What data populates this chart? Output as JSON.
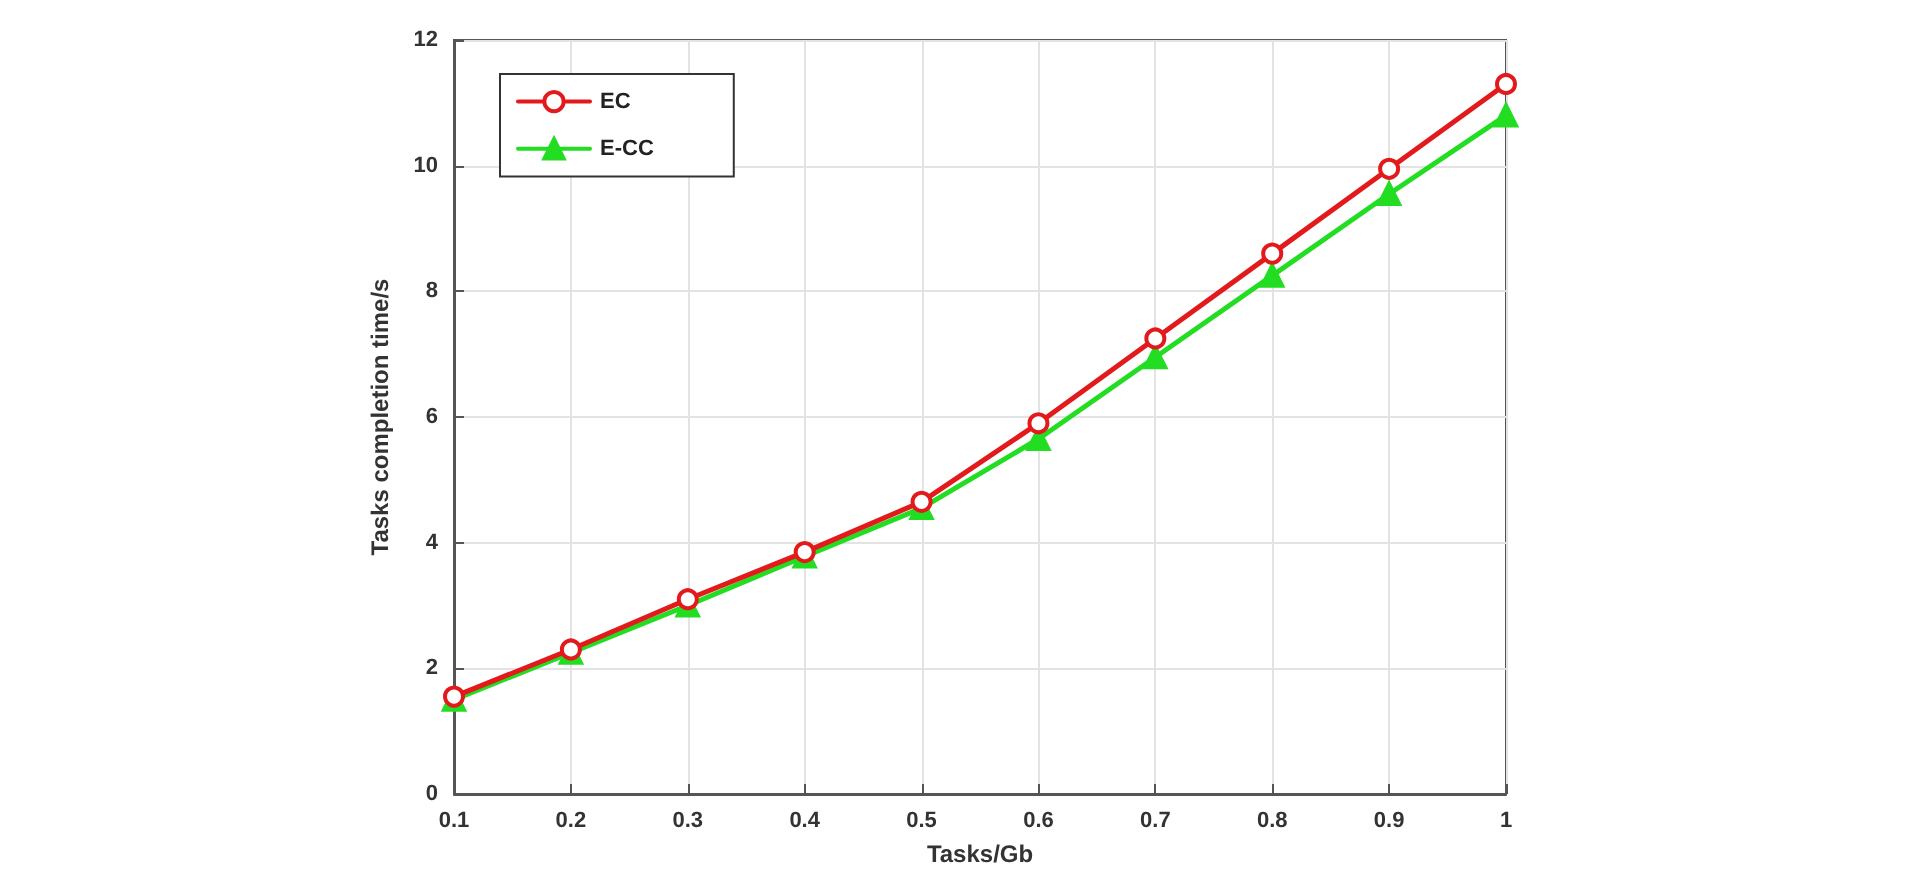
{
  "chart_data": {
    "type": "line",
    "xlabel": "Tasks/Gb",
    "ylabel": "Tasks completion time/s",
    "x": [
      0.1,
      0.2,
      0.3,
      0.4,
      0.5,
      0.6,
      0.7,
      0.8,
      0.9,
      1
    ],
    "series": [
      {
        "name": "EC",
        "color": "#e31a1c",
        "marker": "circle",
        "values": [
          1.55,
          2.3,
          3.1,
          3.85,
          4.65,
          5.9,
          7.25,
          8.6,
          9.95,
          11.3
        ]
      },
      {
        "name": "E-CC",
        "color": "#22dd22",
        "marker": "triangle",
        "values": [
          1.5,
          2.25,
          3.0,
          3.78,
          4.55,
          5.65,
          6.95,
          8.25,
          9.55,
          10.8
        ]
      }
    ],
    "xlim": [
      0.1,
      1
    ],
    "xticks": [
      0.1,
      0.2,
      0.3,
      0.4,
      0.5,
      0.6,
      0.7,
      0.8,
      0.9,
      1
    ],
    "ylim": [
      0,
      12
    ],
    "yticks": [
      0,
      2,
      4,
      6,
      8,
      10,
      12
    ],
    "grid": true,
    "legend": "top left",
    "line_style": "solid"
  }
}
